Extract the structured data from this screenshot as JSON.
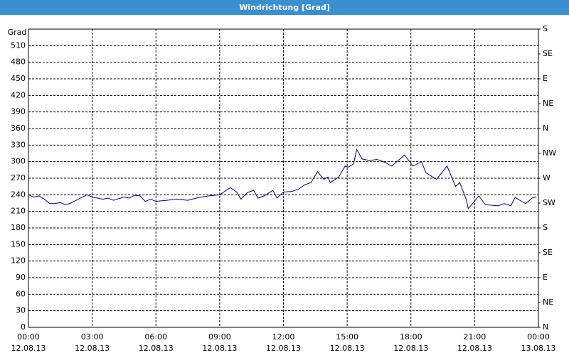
{
  "window_title": "Windrichtung [Grad]",
  "chart_data": {
    "type": "line",
    "y_label": "Grad",
    "grid": true,
    "x": [
      0,
      0.25,
      0.5,
      0.75,
      1,
      1.25,
      1.5,
      1.75,
      2,
      2.25,
      2.5,
      2.75,
      3,
      3.25,
      3.5,
      3.75,
      4,
      4.25,
      4.5,
      4.75,
      5,
      5.25,
      5.5,
      5.75,
      6,
      6.5,
      7,
      7.5,
      8,
      8.5,
      9,
      9.5,
      9.8,
      10,
      10.3,
      10.6,
      10.8,
      11.1,
      11.5,
      11.7,
      12,
      12.4,
      12.7,
      13,
      13.3,
      13.6,
      13.9,
      14.1,
      14.2,
      14.6,
      14.9,
      15.05,
      15.3,
      15.45,
      15.7,
      16.05,
      16.4,
      16.7,
      17.1,
      17.7,
      18.1,
      18.5,
      18.7,
      19.2,
      19.7,
      20.1,
      20.3,
      20.6,
      20.7,
      21.2,
      21.5,
      22.1,
      22.4,
      22.7,
      22.9,
      23.4,
      23.7,
      23.9
    ],
    "series": [
      {
        "name": "Windrichtung",
        "color": "#000080",
        "values": [
          240,
          236,
          238,
          232,
          224,
          224,
          226,
          222,
          225,
          230,
          235,
          240,
          236,
          234,
          232,
          234,
          230,
          233,
          236,
          234,
          239,
          238,
          228,
          232,
          228,
          230,
          232,
          230,
          235,
          238,
          240,
          253,
          245,
          232,
          244,
          248,
          234,
          238,
          248,
          234,
          245,
          246,
          250,
          258,
          262,
          282,
          268,
          272,
          262,
          272,
          292,
          290,
          296,
          322,
          305,
          302,
          304,
          300,
          292,
          312,
          292,
          300,
          280,
          268,
          292,
          255,
          262,
          232,
          215,
          238,
          222,
          220,
          224,
          220,
          235,
          224,
          234,
          236
        ]
      }
    ],
    "xlim": [
      0,
      24
    ],
    "xticks": [
      {
        "value": 0,
        "label": "00:00",
        "date": "12.08.13"
      },
      {
        "value": 3,
        "label": "03:00",
        "date": "12.08.13"
      },
      {
        "value": 6,
        "label": "06:00",
        "date": "12.08.13"
      },
      {
        "value": 9,
        "label": "09:00",
        "date": "12.08.13"
      },
      {
        "value": 12,
        "label": "12:00",
        "date": "12.08.13"
      },
      {
        "value": 15,
        "label": "15:00",
        "date": "12.08.13"
      },
      {
        "value": 18,
        "label": "18:00",
        "date": "12.08.13"
      },
      {
        "value": 21,
        "label": "21:00",
        "date": "12.08.13"
      },
      {
        "value": 24,
        "label": "00:00",
        "date": "13.08.13"
      }
    ],
    "ylim": [
      0,
      540
    ],
    "yticks": [
      0,
      30,
      60,
      90,
      120,
      150,
      180,
      210,
      240,
      270,
      300,
      330,
      360,
      390,
      420,
      450,
      480,
      510
    ],
    "y2lim": [
      0,
      540
    ],
    "y2ticks": [
      {
        "value": 0,
        "label": "N"
      },
      {
        "value": 45,
        "label": "NE"
      },
      {
        "value": 90,
        "label": "E"
      },
      {
        "value": 135,
        "label": "SE"
      },
      {
        "value": 180,
        "label": "S"
      },
      {
        "value": 225,
        "label": "SW"
      },
      {
        "value": 270,
        "label": "W"
      },
      {
        "value": 315,
        "label": "NW"
      },
      {
        "value": 360,
        "label": "N"
      },
      {
        "value": 405,
        "label": "NE"
      },
      {
        "value": 450,
        "label": "E"
      },
      {
        "value": 495,
        "label": "SE"
      },
      {
        "value": 540,
        "label": "S"
      }
    ]
  }
}
